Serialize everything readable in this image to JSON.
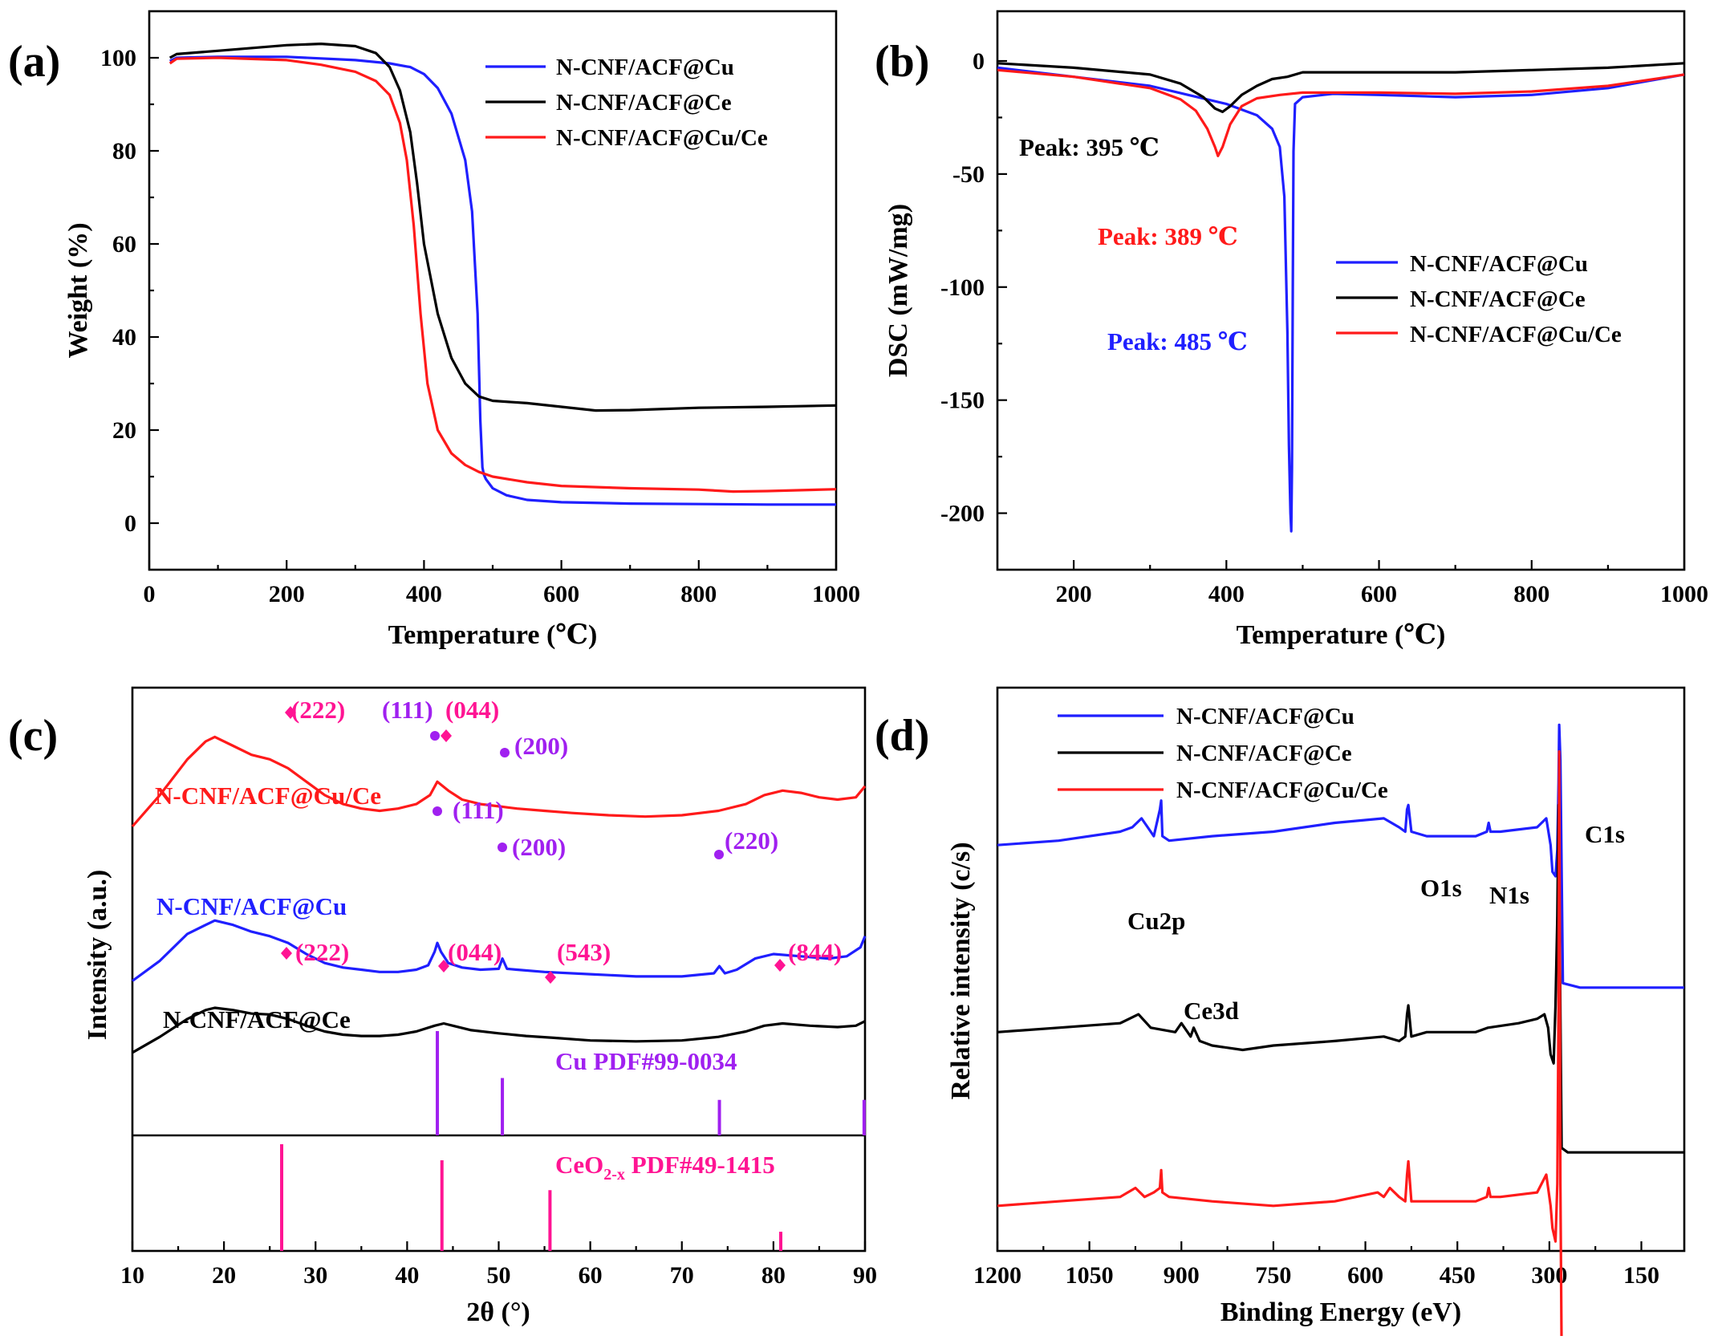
{
  "colors": {
    "cu": "#1f1fff",
    "ce": "#000000",
    "cuce": "#ff1a1a",
    "cu_ref": "#a020f0",
    "ceo2_ref": "#ff1493"
  },
  "panels": {
    "a": "(a)",
    "b": "(b)",
    "c": "(c)",
    "d": "(d)"
  },
  "chart_data": [
    {
      "id": "a",
      "type": "line",
      "xlabel": "Temperature (℃)",
      "ylabel": "Weight (%)",
      "xlim": [
        0,
        1000
      ],
      "ylim": [
        -10,
        110
      ],
      "xticks": [
        "0",
        "200",
        "400",
        "600",
        "800",
        "1000"
      ],
      "yticks": [
        "0",
        "20",
        "40",
        "60",
        "80",
        "100"
      ],
      "legend_position": "top-right",
      "series": [
        {
          "name": "N-CNF/ACF@Cu",
          "color": "cu",
          "x": [
            30,
            40,
            100,
            200,
            300,
            350,
            380,
            400,
            420,
            440,
            460,
            470,
            478,
            482,
            485,
            487,
            490,
            500,
            520,
            550,
            600,
            700,
            800,
            900,
            1000
          ],
          "y": [
            99.3,
            100,
            100.2,
            100.2,
            99.5,
            98.8,
            98,
            96.5,
            93.5,
            88,
            78,
            67,
            45,
            22,
            12,
            10.5,
            9.5,
            7.5,
            6,
            5,
            4.5,
            4.2,
            4.1,
            4,
            4
          ]
        },
        {
          "name": "N-CNF/ACF@Ce",
          "color": "ce",
          "x": [
            30,
            40,
            100,
            200,
            250,
            300,
            330,
            350,
            365,
            380,
            390,
            400,
            420,
            440,
            460,
            480,
            500,
            550,
            600,
            650,
            700,
            800,
            900,
            1000
          ],
          "y": [
            100,
            100.8,
            101.5,
            102.7,
            103,
            102.5,
            101,
            98,
            93,
            84,
            73,
            60,
            45,
            35.5,
            30,
            27.2,
            26.3,
            25.8,
            25,
            24.2,
            24.3,
            24.8,
            25,
            25.3
          ]
        },
        {
          "name": "N-CNF/ACF@Cu/Ce",
          "color": "cuce",
          "x": [
            30,
            40,
            100,
            200,
            250,
            300,
            330,
            350,
            365,
            375,
            385,
            395,
            405,
            420,
            440,
            460,
            480,
            500,
            550,
            600,
            700,
            800,
            850,
            900,
            1000
          ],
          "y": [
            98.8,
            99.8,
            100,
            99.5,
            98.5,
            97,
            95,
            92,
            86,
            78,
            64,
            45,
            30,
            20,
            15,
            12.5,
            11,
            10,
            8.8,
            8,
            7.5,
            7.2,
            6.8,
            6.9,
            7.3
          ]
        }
      ]
    },
    {
      "id": "b",
      "type": "line",
      "xlabel": "Temperature (℃)",
      "ylabel": "DSC (mW/mg)",
      "xlim": [
        100,
        1000
      ],
      "ylim": [
        -225,
        22
      ],
      "xticks": [
        "200",
        "400",
        "600",
        "800",
        "1000"
      ],
      "yticks": [
        "0",
        "-50",
        "-100",
        "-150",
        "-200"
      ],
      "legend_position": "center-right",
      "annotations": [
        {
          "text": "Peak: 395 ℃",
          "color": "ce"
        },
        {
          "text": "Peak: 389 ℃",
          "color": "cuce"
        },
        {
          "text": "Peak: 485 ℃",
          "color": "cu"
        }
      ],
      "series": [
        {
          "name": "N-CNF/ACF@Cu",
          "color": "cu",
          "x": [
            100,
            200,
            300,
            350,
            400,
            440,
            460,
            470,
            476,
            480,
            482,
            484,
            485,
            486,
            487,
            488,
            490,
            500,
            540,
            600,
            700,
            800,
            900,
            1000
          ],
          "y": [
            -3,
            -7,
            -11,
            -15,
            -19,
            -24,
            -30,
            -38,
            -60,
            -120,
            -170,
            -200,
            -208,
            -180,
            -100,
            -40,
            -19,
            -16,
            -14.5,
            -15,
            -16,
            -15,
            -12,
            -6
          ]
        },
        {
          "name": "N-CNF/ACF@Ce",
          "color": "ce",
          "x": [
            100,
            200,
            300,
            340,
            370,
            385,
            395,
            405,
            420,
            440,
            460,
            480,
            500,
            600,
            700,
            800,
            900,
            1000
          ],
          "y": [
            -1,
            -3,
            -6,
            -10,
            -16,
            -21,
            -22.5,
            -20,
            -15,
            -11,
            -8,
            -7,
            -5,
            -5,
            -5,
            -4,
            -3,
            -1
          ]
        },
        {
          "name": "N-CNF/ACF@Cu/Ce",
          "color": "cuce",
          "x": [
            100,
            200,
            300,
            340,
            360,
            375,
            385,
            389,
            395,
            405,
            420,
            440,
            470,
            500,
            600,
            700,
            800,
            900,
            1000
          ],
          "y": [
            -4,
            -7,
            -12,
            -17,
            -22,
            -30,
            -38,
            -42,
            -38,
            -28,
            -20,
            -16.5,
            -15,
            -14,
            -14,
            -14.5,
            -13.5,
            -11,
            -6
          ]
        }
      ]
    },
    {
      "id": "c",
      "type": "line",
      "xlabel": "2θ (°)",
      "ylabel": "Intensity (a.u.)",
      "xlim": [
        10,
        90
      ],
      "xticks": [
        "10",
        "20",
        "30",
        "40",
        "50",
        "60",
        "70",
        "80",
        "90"
      ],
      "series_labels": [
        "N-CNF/ACF@Cu/Ce",
        "N-CNF/ACF@Cu",
        "N-CNF/ACF@Ce"
      ],
      "peak_labels": {
        "cuce": [
          "(222)",
          "(111)",
          "(044)",
          "(200)"
        ],
        "cu": [
          "(111)",
          "(200)",
          "(220)"
        ],
        "ce": [
          "(222)",
          "(044)",
          "(543)",
          "(844)"
        ]
      },
      "reference_labels": {
        "cu": "Cu PDF#99-0034",
        "ceo2_main": "CeO",
        "ceo2_sub": "2-x",
        "ceo2_rest": " PDF#49-1415"
      },
      "reference_cu": {
        "x": [
          43.3,
          50.4,
          74.1,
          89.9
        ],
        "rel": [
          1.0,
          0.55,
          0.34,
          0.34
        ]
      },
      "reference_ceo2": {
        "x": [
          26.3,
          43.8,
          55.6,
          80.8
        ],
        "rel": [
          1.0,
          0.85,
          0.57,
          0.18
        ]
      },
      "series": [
        {
          "key": "cuce",
          "color": "cuce",
          "x": [
            10,
            13,
            16,
            18,
            19,
            21,
            23,
            25,
            27,
            29,
            31,
            33,
            35,
            37,
            39,
            41,
            42.5,
            43.3,
            44.5,
            46,
            48,
            50,
            52,
            55,
            58,
            62,
            66,
            70,
            74,
            77,
            79,
            81,
            83,
            85,
            87,
            89,
            90
          ],
          "y": [
            0.69,
            0.76,
            0.84,
            0.88,
            0.89,
            0.87,
            0.85,
            0.84,
            0.82,
            0.79,
            0.76,
            0.74,
            0.73,
            0.725,
            0.73,
            0.74,
            0.76,
            0.79,
            0.77,
            0.75,
            0.74,
            0.735,
            0.73,
            0.725,
            0.72,
            0.715,
            0.712,
            0.715,
            0.725,
            0.74,
            0.76,
            0.77,
            0.765,
            0.755,
            0.75,
            0.755,
            0.78
          ]
        },
        {
          "key": "cu",
          "color": "cu",
          "x": [
            10,
            13,
            16,
            18,
            19,
            21,
            23,
            25,
            27,
            29,
            31,
            33,
            35,
            37,
            39,
            41,
            42.3,
            43.0,
            43.3,
            43.7,
            44.5,
            46,
            48,
            50.0,
            50.4,
            50.9,
            52,
            55,
            60,
            65,
            70,
            73.5,
            74.1,
            74.7,
            76,
            78,
            80,
            83,
            86,
            88,
            89.5,
            90
          ],
          "y": [
            0.345,
            0.39,
            0.45,
            0.47,
            0.48,
            0.47,
            0.455,
            0.445,
            0.43,
            0.405,
            0.385,
            0.375,
            0.37,
            0.365,
            0.365,
            0.37,
            0.38,
            0.41,
            0.43,
            0.41,
            0.385,
            0.375,
            0.37,
            0.372,
            0.395,
            0.372,
            0.37,
            0.365,
            0.36,
            0.355,
            0.355,
            0.362,
            0.378,
            0.362,
            0.37,
            0.395,
            0.405,
            0.4,
            0.395,
            0.4,
            0.42,
            0.445
          ]
        },
        {
          "key": "ce",
          "color": "ce",
          "x": [
            10,
            13,
            16,
            18,
            19,
            21,
            23,
            25,
            27,
            29,
            31,
            33,
            35,
            37,
            39,
            41,
            43,
            44,
            45,
            47,
            50,
            53,
            56,
            60,
            65,
            70,
            74,
            77,
            79,
            81,
            84,
            87,
            89,
            90
          ],
          "y": [
            0.185,
            0.22,
            0.26,
            0.28,
            0.285,
            0.28,
            0.272,
            0.27,
            0.26,
            0.245,
            0.232,
            0.225,
            0.222,
            0.222,
            0.225,
            0.232,
            0.245,
            0.25,
            0.245,
            0.235,
            0.228,
            0.222,
            0.218,
            0.212,
            0.21,
            0.212,
            0.22,
            0.232,
            0.245,
            0.25,
            0.245,
            0.242,
            0.245,
            0.255
          ]
        }
      ]
    },
    {
      "id": "d",
      "type": "line",
      "xlabel": "Binding Energy (eV)",
      "ylabel": "Relative intensity (c/s)",
      "xlim": [
        1200,
        80
      ],
      "xticks": [
        "1200",
        "1050",
        "900",
        "750",
        "600",
        "450",
        "300",
        "150"
      ],
      "legend_position": "top-left",
      "annotations": [
        "Cu2p",
        "O1s",
        "N1s",
        "C1s",
        "Ce3d"
      ],
      "series": [
        {
          "name": "N-CNF/ACF@Cu",
          "color": "cu",
          "x": [
            1200,
            1100,
            1000,
            980,
            965,
            955,
            945,
            935,
            933,
            931,
            920,
            850,
            750,
            650,
            570,
            545,
            535,
            532,
            530,
            525,
            500,
            420,
            402,
            399,
            396,
            380,
            320,
            305,
            298,
            295,
            290,
            287,
            285,
            284,
            282,
            278,
            250,
            200,
            150,
            80
          ],
          "y": [
            0.76,
            0.77,
            0.79,
            0.8,
            0.82,
            0.8,
            0.78,
            0.84,
            0.86,
            0.78,
            0.77,
            0.78,
            0.79,
            0.81,
            0.82,
            0.8,
            0.79,
            0.84,
            0.85,
            0.79,
            0.78,
            0.78,
            0.79,
            0.81,
            0.79,
            0.79,
            0.8,
            0.82,
            0.76,
            0.7,
            0.69,
            0.75,
            0.9,
            1.03,
            0.95,
            0.45,
            0.44,
            0.44,
            0.44,
            0.44
          ]
        },
        {
          "name": "N-CNF/ACF@Ce",
          "color": "ce",
          "x": [
            1200,
            1100,
            1000,
            970,
            950,
            910,
            900,
            885,
            880,
            870,
            850,
            800,
            750,
            650,
            570,
            545,
            535,
            532,
            530,
            525,
            500,
            420,
            400,
            350,
            320,
            308,
            302,
            298,
            293,
            290,
            287,
            285,
            283,
            280,
            270,
            200,
            150,
            80
          ],
          "y": [
            0.34,
            0.35,
            0.36,
            0.38,
            0.35,
            0.34,
            0.36,
            0.33,
            0.35,
            0.32,
            0.31,
            0.3,
            0.31,
            0.32,
            0.33,
            0.32,
            0.33,
            0.38,
            0.4,
            0.33,
            0.34,
            0.34,
            0.35,
            0.36,
            0.37,
            0.38,
            0.35,
            0.29,
            0.27,
            0.4,
            0.6,
            0.85,
            0.55,
            0.08,
            0.07,
            0.07,
            0.07,
            0.07
          ]
        },
        {
          "name": "N-CNF/ACF@Cu/Ce",
          "color": "cuce",
          "x": [
            1200,
            1100,
            1000,
            975,
            960,
            945,
            935,
            933,
            931,
            920,
            850,
            750,
            650,
            580,
            570,
            560,
            545,
            535,
            532,
            530,
            525,
            500,
            420,
            402,
            399,
            396,
            380,
            320,
            305,
            298,
            295,
            290,
            287,
            285,
            284,
            283,
            282,
            280,
            250,
            150,
            80
          ],
          "y": [
            -0.05,
            -0.04,
            -0.03,
            -0.01,
            -0.03,
            -0.02,
            -0.01,
            0.03,
            -0.02,
            -0.03,
            -0.04,
            -0.05,
            -0.04,
            -0.02,
            -0.03,
            -0.01,
            -0.03,
            -0.04,
            0.02,
            0.05,
            -0.04,
            -0.04,
            -0.04,
            -0.03,
            -0.01,
            -0.03,
            -0.03,
            -0.02,
            0.02,
            -0.05,
            -0.1,
            -0.13,
            0.0,
            0.4,
            0.97,
            0.55,
            0.0,
            -0.37,
            -0.37,
            -0.37,
            -0.38
          ]
        }
      ]
    }
  ]
}
